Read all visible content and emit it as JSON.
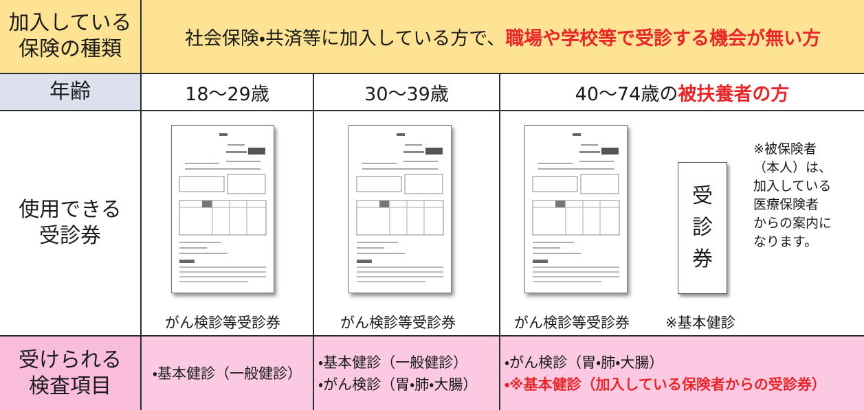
{
  "insurance": {
    "label_lines": [
      "加入している",
      "保険の種類"
    ],
    "text": "社会保険・共済等に加入している方で、",
    "highlight": "職場や学校等で受診する機会が無い方"
  },
  "age": {
    "label": "年齢",
    "columns": [
      "18～29歳",
      "30～39歳"
    ],
    "last": {
      "text": "40～74歳の",
      "highlight": "被扶養者の方"
    }
  },
  "vouchers": {
    "label_lines": [
      "使用できる",
      "受診券"
    ],
    "captions": [
      "がん検診等受診券",
      "がん検診等受診券",
      "がん検診等受診券"
    ],
    "basic_caption": "※基本健診",
    "stamp": [
      "受",
      "診",
      "券"
    ],
    "note_lines": [
      "※被保険者",
      "（本人）は、",
      "加入している",
      "医療保険者",
      "からの案内に",
      "なります。"
    ]
  },
  "exams": {
    "label_lines": [
      "受けられる",
      "検査項目"
    ],
    "columns": [
      [
        "・基本健診（一般健診）"
      ],
      [
        "・基本健診（一般健診）",
        "・がん検診（胃・肺・大腸）"
      ]
    ],
    "last": {
      "text": "・がん検診（胃・肺・大腸）",
      "highlight": "・※基本健診（加入している保険者からの受診券）"
    }
  }
}
